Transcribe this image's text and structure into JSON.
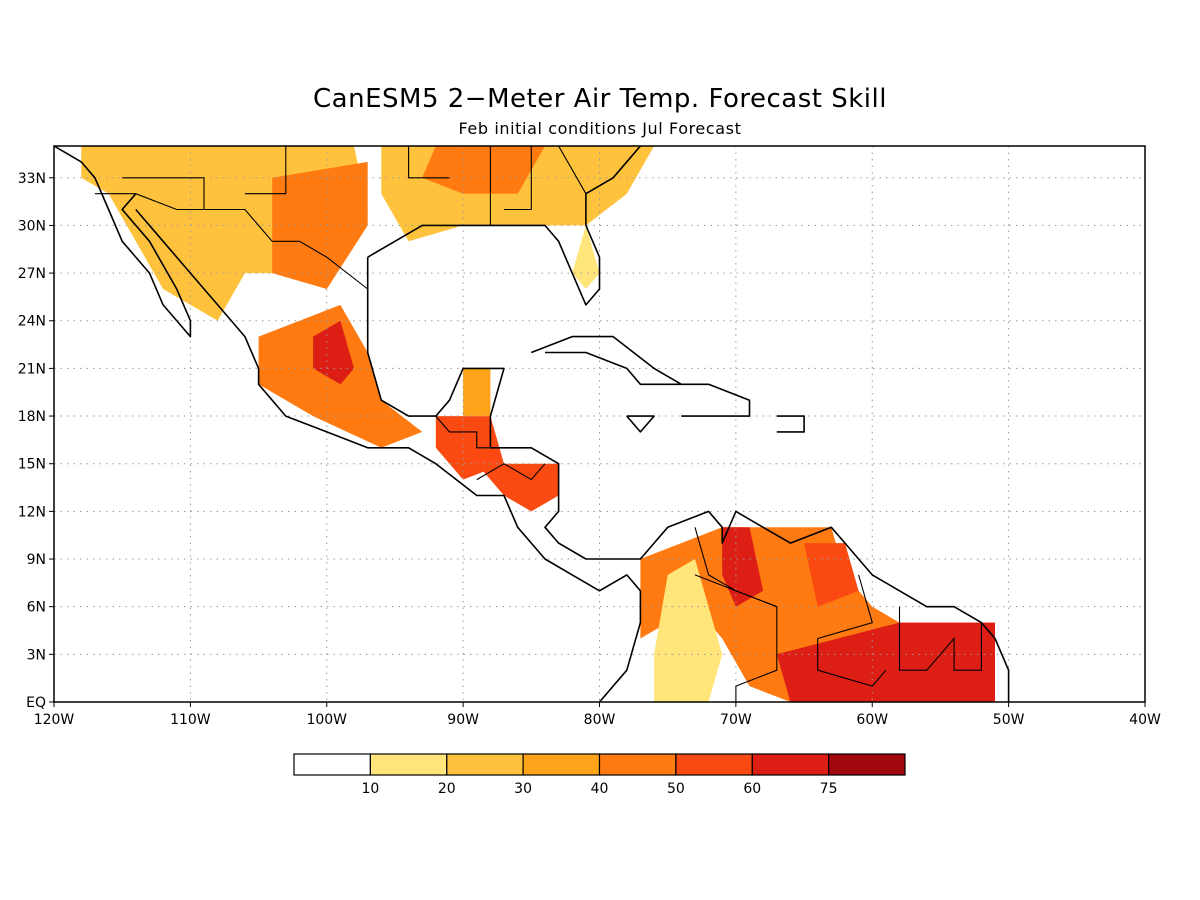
{
  "title": "CanESM5 2−Meter Air Temp. Forecast Skill",
  "subtitle": "Feb initial conditions   Jul Forecast",
  "axes": {
    "x_ticks": [
      "120W",
      "110W",
      "100W",
      "90W",
      "80W",
      "70W",
      "60W",
      "50W",
      "40W"
    ],
    "y_ticks": [
      "33N",
      "30N",
      "27N",
      "24N",
      "21N",
      "18N",
      "15N",
      "12N",
      "9N",
      "6N",
      "3N",
      "EQ"
    ]
  },
  "colorbar": {
    "labels": [
      "10",
      "20",
      "30",
      "40",
      "50",
      "60",
      "75"
    ],
    "colors": [
      "#ffffff",
      "#ffe57a",
      "#ffc23c",
      "#ffa31a",
      "#ff7a10",
      "#fa4a12",
      "#dc1e14",
      "#a0060c"
    ]
  },
  "map": {
    "extent": {
      "lon": [
        -120,
        -40
      ],
      "lat": [
        0,
        35
      ]
    },
    "grid": "dotted",
    "skill_regions": [
      {
        "level": 2,
        "lonlat": [
          [
            -118,
            35
          ],
          [
            -98,
            35
          ],
          [
            -97,
            31
          ],
          [
            -99,
            28
          ],
          [
            -102,
            27
          ],
          [
            -106,
            27
          ],
          [
            -108,
            24
          ],
          [
            -112,
            26
          ],
          [
            -114,
            29
          ],
          [
            -116,
            32
          ],
          [
            -118,
            33
          ]
        ]
      },
      {
        "level": 4,
        "lonlat": [
          [
            -104,
            33
          ],
          [
            -97,
            34
          ],
          [
            -97,
            30
          ],
          [
            -100,
            26
          ],
          [
            -104,
            27
          ]
        ]
      },
      {
        "level": 2,
        "lonlat": [
          [
            -96,
            35
          ],
          [
            -76,
            35
          ],
          [
            -78,
            32
          ],
          [
            -81,
            30
          ],
          [
            -84,
            30
          ],
          [
            -90,
            30
          ],
          [
            -94,
            29
          ],
          [
            -96,
            32
          ]
        ]
      },
      {
        "level": 4,
        "lonlat": [
          [
            -92,
            35
          ],
          [
            -84,
            35
          ],
          [
            -86,
            32
          ],
          [
            -90,
            32
          ],
          [
            -93,
            33
          ]
        ]
      },
      {
        "level": 1,
        "lonlat": [
          [
            -81,
            30
          ],
          [
            -80,
            27
          ],
          [
            -81,
            26
          ],
          [
            -82,
            27
          ]
        ]
      },
      {
        "level": 4,
        "lonlat": [
          [
            -105,
            23
          ],
          [
            -99,
            25
          ],
          [
            -97,
            22
          ],
          [
            -96,
            19
          ],
          [
            -93,
            17
          ],
          [
            -96,
            16
          ],
          [
            -101,
            18
          ],
          [
            -105,
            20
          ]
        ]
      },
      {
        "level": 6,
        "lonlat": [
          [
            -101,
            23
          ],
          [
            -99,
            24
          ],
          [
            -98,
            21
          ],
          [
            -99,
            20
          ],
          [
            -101,
            21
          ]
        ]
      },
      {
        "level": 5,
        "lonlat": [
          [
            -92,
            18
          ],
          [
            -88,
            18
          ],
          [
            -87,
            15
          ],
          [
            -90,
            14
          ],
          [
            -92,
            16
          ]
        ]
      },
      {
        "level": 3,
        "lonlat": [
          [
            -90,
            21
          ],
          [
            -88,
            21
          ],
          [
            -88,
            18
          ],
          [
            -90,
            18
          ]
        ]
      },
      {
        "level": 5,
        "lonlat": [
          [
            -89,
            15
          ],
          [
            -83,
            15
          ],
          [
            -83,
            13
          ],
          [
            -85,
            12
          ],
          [
            -87,
            13
          ]
        ]
      },
      {
        "level": 4,
        "lonlat": [
          [
            -77,
            9
          ],
          [
            -71,
            11
          ],
          [
            -63,
            11
          ],
          [
            -62,
            8
          ],
          [
            -60,
            6
          ],
          [
            -58,
            5
          ],
          [
            -51,
            5
          ],
          [
            -51,
            0
          ],
          [
            -66,
            0
          ],
          [
            -69,
            1
          ],
          [
            -71,
            4
          ],
          [
            -74,
            7
          ],
          [
            -75,
            5
          ],
          [
            -77,
            4
          ]
        ]
      },
      {
        "level": 6,
        "lonlat": [
          [
            -67,
            3
          ],
          [
            -58,
            5
          ],
          [
            -51,
            5
          ],
          [
            -51,
            0
          ],
          [
            -66,
            0
          ]
        ]
      },
      {
        "level": 6,
        "lonlat": [
          [
            -71,
            11
          ],
          [
            -69,
            11
          ],
          [
            -68,
            7
          ],
          [
            -70,
            6
          ],
          [
            -71,
            8
          ]
        ]
      },
      {
        "level": 5,
        "lonlat": [
          [
            -65,
            10
          ],
          [
            -62,
            10
          ],
          [
            -61,
            7
          ],
          [
            -64,
            6
          ]
        ]
      },
      {
        "level": 1,
        "lonlat": [
          [
            -75,
            8
          ],
          [
            -73,
            9
          ],
          [
            -72,
            6
          ],
          [
            -71,
            3
          ],
          [
            -72,
            0
          ],
          [
            -76,
            0
          ],
          [
            -76,
            3
          ]
        ]
      }
    ],
    "coastlines": [
      {
        "lonlat": [
          [
            -120,
            35
          ],
          [
            -118,
            34
          ],
          [
            -117,
            33
          ],
          [
            -116,
            31
          ],
          [
            -115,
            29
          ],
          [
            -113,
            27
          ],
          [
            -112,
            25
          ],
          [
            -110,
            23
          ],
          [
            -110,
            24
          ],
          [
            -111,
            26
          ],
          [
            -113,
            29
          ],
          [
            -115,
            31
          ],
          [
            -114,
            32
          ]
        ]
      },
      {
        "lonlat": [
          [
            -114,
            31
          ],
          [
            -112,
            29
          ],
          [
            -110,
            27
          ],
          [
            -108,
            25
          ],
          [
            -106,
            23
          ],
          [
            -105,
            21
          ],
          [
            -105,
            20
          ],
          [
            -103,
            18
          ],
          [
            -100,
            17
          ],
          [
            -97,
            16
          ],
          [
            -94,
            16
          ],
          [
            -92,
            15
          ],
          [
            -89,
            13
          ],
          [
            -87,
            13
          ],
          [
            -86,
            11
          ],
          [
            -85,
            10
          ],
          [
            -84,
            9
          ],
          [
            -82,
            8
          ],
          [
            -80,
            7
          ],
          [
            -78,
            8
          ],
          [
            -77,
            7
          ],
          [
            -77,
            5
          ],
          [
            -78,
            2
          ],
          [
            -80,
            0
          ]
        ]
      },
      {
        "lonlat": [
          [
            -97,
            28
          ],
          [
            -97,
            25
          ],
          [
            -97,
            22
          ],
          [
            -96,
            19
          ],
          [
            -94,
            18
          ],
          [
            -92,
            18
          ],
          [
            -91,
            19
          ],
          [
            -90,
            21
          ],
          [
            -88,
            21
          ],
          [
            -87,
            21
          ],
          [
            -88,
            18
          ],
          [
            -88,
            16
          ],
          [
            -85,
            16
          ],
          [
            -83,
            15
          ],
          [
            -83,
            12
          ],
          [
            -84,
            11
          ],
          [
            -83,
            10
          ],
          [
            -81,
            9
          ],
          [
            -79,
            9
          ],
          [
            -77,
            9
          ],
          [
            -76,
            10
          ],
          [
            -75,
            11
          ],
          [
            -72,
            12
          ],
          [
            -71,
            11
          ],
          [
            -71,
            10
          ],
          [
            -70,
            12
          ],
          [
            -68,
            11
          ],
          [
            -66,
            10
          ],
          [
            -63,
            11
          ],
          [
            -62,
            10
          ],
          [
            -61,
            9
          ],
          [
            -60,
            8
          ],
          [
            -58,
            7
          ],
          [
            -56,
            6
          ],
          [
            -54,
            6
          ],
          [
            -52,
            5
          ],
          [
            -51,
            4
          ],
          [
            -50,
            2
          ],
          [
            -50,
            0
          ]
        ]
      },
      {
        "lonlat": [
          [
            -97,
            28
          ],
          [
            -95,
            29
          ],
          [
            -93,
            30
          ],
          [
            -90,
            30
          ],
          [
            -88,
            30
          ],
          [
            -86,
            30
          ],
          [
            -84,
            30
          ],
          [
            -83,
            29
          ],
          [
            -82,
            27
          ],
          [
            -81,
            25
          ],
          [
            -80,
            26
          ],
          [
            -80,
            28
          ],
          [
            -81,
            30
          ],
          [
            -81,
            32
          ],
          [
            -79,
            33
          ],
          [
            -77,
            35
          ]
        ]
      },
      {
        "lonlat": [
          [
            -85,
            22
          ],
          [
            -82,
            23
          ],
          [
            -79,
            23
          ],
          [
            -76,
            21
          ],
          [
            -74,
            20
          ],
          [
            -77,
            20
          ],
          [
            -78,
            21
          ],
          [
            -81,
            22
          ],
          [
            -84,
            22
          ]
        ]
      },
      {
        "lonlat": [
          [
            -74,
            20
          ],
          [
            -72,
            20
          ],
          [
            -69,
            19
          ],
          [
            -69,
            18
          ],
          [
            -72,
            18
          ],
          [
            -74,
            18
          ]
        ]
      },
      {
        "lonlat": [
          [
            -78,
            18
          ],
          [
            -76,
            18
          ],
          [
            -77,
            17
          ],
          [
            -78,
            18
          ]
        ]
      },
      {
        "lonlat": [
          [
            -67,
            18
          ],
          [
            -65,
            18
          ],
          [
            -65,
            17
          ],
          [
            -67,
            17
          ]
        ]
      }
    ],
    "borders": [
      {
        "lonlat": [
          [
            -117,
            32
          ],
          [
            -114,
            32
          ],
          [
            -111,
            31
          ],
          [
            -108,
            31
          ],
          [
            -106,
            31
          ],
          [
            -104,
            29
          ],
          [
            -102,
            29
          ],
          [
            -100,
            28
          ],
          [
            -97,
            26
          ]
        ]
      },
      {
        "lonlat": [
          [
            -92,
            18
          ],
          [
            -91,
            17
          ],
          [
            -89,
            17
          ],
          [
            -89,
            16
          ],
          [
            -88,
            16
          ]
        ]
      },
      {
        "lonlat": [
          [
            -89,
            14
          ],
          [
            -87,
            15
          ],
          [
            -85,
            14
          ],
          [
            -84,
            15
          ]
        ]
      },
      {
        "lonlat": [
          [
            -73,
            11
          ],
          [
            -72,
            8
          ],
          [
            -70,
            7
          ],
          [
            -67,
            6
          ],
          [
            -67,
            2
          ],
          [
            -70,
            1
          ],
          [
            -70,
            0
          ]
        ]
      },
      {
        "lonlat": [
          [
            -73,
            8
          ],
          [
            -67,
            6
          ]
        ]
      },
      {
        "lonlat": [
          [
            -61,
            8
          ],
          [
            -60,
            5
          ],
          [
            -64,
            4
          ],
          [
            -64,
            2
          ],
          [
            -60,
            1
          ],
          [
            -59,
            2
          ]
        ]
      },
      {
        "lonlat": [
          [
            -58,
            6
          ],
          [
            -58,
            2
          ],
          [
            -56,
            2
          ],
          [
            -54,
            4
          ],
          [
            -54,
            2
          ],
          [
            -52,
            2
          ],
          [
            -52,
            5
          ]
        ]
      },
      {
        "lonlat": [
          [
            -106,
            35
          ],
          [
            -103,
            35
          ],
          [
            -103,
            32
          ],
          [
            -106,
            32
          ]
        ]
      },
      {
        "lonlat": [
          [
            -94,
            35
          ],
          [
            -94,
            33
          ],
          [
            -91,
            33
          ]
        ]
      },
      {
        "lonlat": [
          [
            -88,
            35
          ],
          [
            -88,
            30
          ]
        ]
      },
      {
        "lonlat": [
          [
            -85,
            35
          ],
          [
            -85,
            31
          ],
          [
            -87,
            31
          ]
        ]
      },
      {
        "lonlat": [
          [
            -83,
            35
          ],
          [
            -81,
            32
          ]
        ]
      },
      {
        "lonlat": [
          [
            -115,
            33
          ],
          [
            -109,
            33
          ],
          [
            -109,
            31
          ]
        ]
      }
    ]
  }
}
